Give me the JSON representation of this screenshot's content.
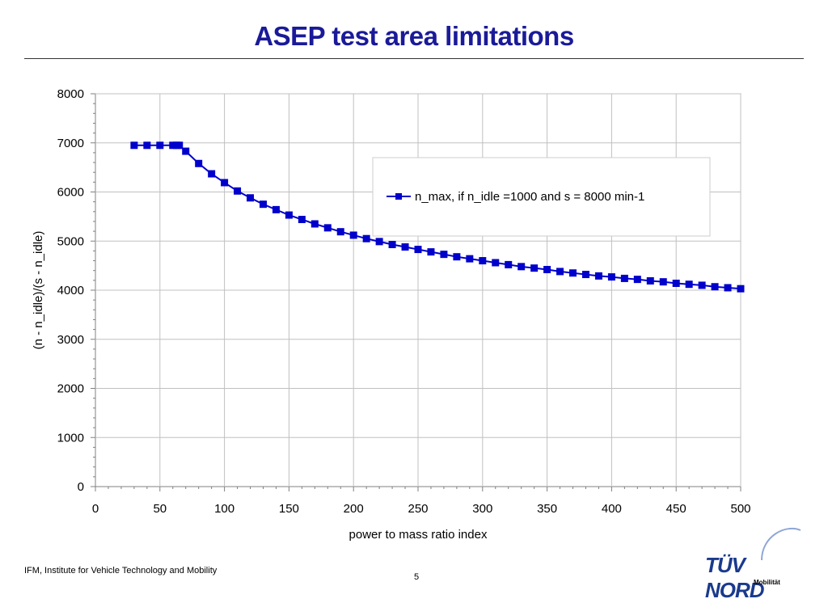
{
  "slide": {
    "title": "ASEP test area limitations",
    "footer": "IFM, Institute for Vehicle Technology and Mobility",
    "page_number": "5",
    "logo_text": "TÜV NORD",
    "logo_sub": "Mobilität"
  },
  "chart_data": {
    "type": "line",
    "title": "",
    "xlabel": "power to mass ratio index",
    "ylabel": "(n - n_idle)/(s - n_idle)",
    "xlim": [
      0,
      500
    ],
    "ylim": [
      0,
      8000
    ],
    "x_ticks": [
      0,
      50,
      100,
      150,
      200,
      250,
      300,
      350,
      400,
      450,
      500
    ],
    "y_ticks": [
      0,
      1000,
      2000,
      3000,
      4000,
      5000,
      6000,
      7000,
      8000
    ],
    "grid": true,
    "legend_position": "top-right",
    "colors": {
      "series": "#0000cc"
    },
    "series": [
      {
        "name": "n_max, if n_idle =1000 and s = 8000 min-1",
        "x": [
          30,
          40,
          50,
          60,
          63,
          65,
          70,
          80,
          90,
          100,
          110,
          120,
          130,
          140,
          150,
          160,
          170,
          180,
          190,
          200,
          210,
          220,
          230,
          240,
          250,
          260,
          270,
          280,
          290,
          300,
          310,
          320,
          330,
          340,
          350,
          360,
          370,
          380,
          390,
          400,
          410,
          420,
          430,
          440,
          450,
          460,
          470,
          480,
          490,
          500
        ],
        "y": [
          6950,
          6950,
          6950,
          6950,
          6950,
          6950,
          6830,
          6580,
          6370,
          6190,
          6020,
          5880,
          5750,
          5640,
          5530,
          5440,
          5350,
          5270,
          5190,
          5120,
          5050,
          4990,
          4930,
          4880,
          4830,
          4780,
          4730,
          4680,
          4640,
          4600,
          4560,
          4520,
          4480,
          4450,
          4420,
          4380,
          4350,
          4320,
          4290,
          4270,
          4240,
          4220,
          4190,
          4170,
          4140,
          4120,
          4100,
          4070,
          4050,
          4030
        ]
      }
    ]
  }
}
